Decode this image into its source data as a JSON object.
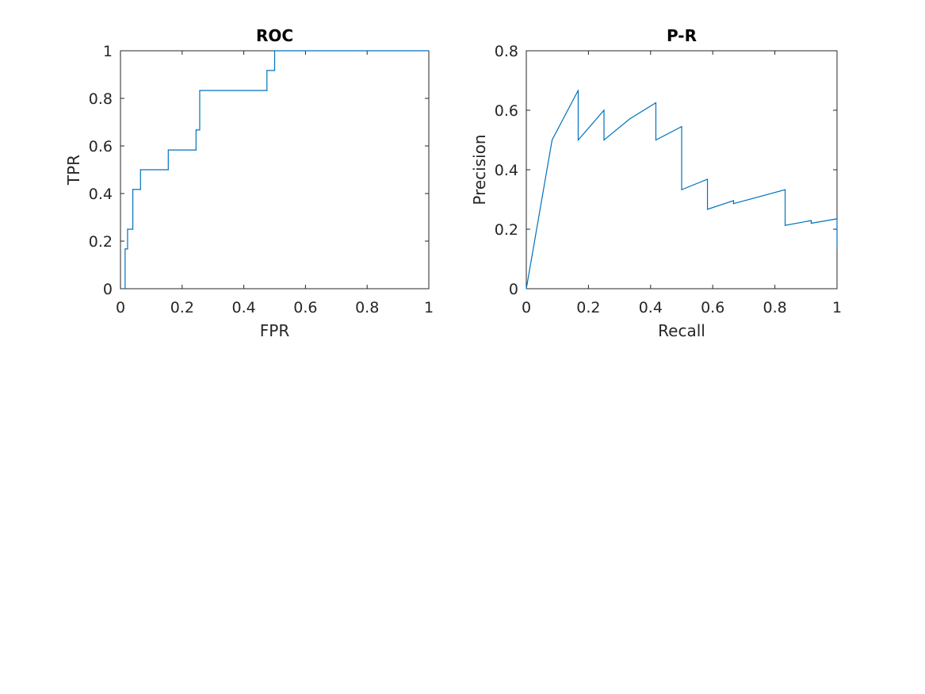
{
  "chart_data": [
    {
      "type": "line",
      "title": "ROC",
      "xlabel": "FPR",
      "ylabel": "TPR",
      "xlim": [
        0,
        1
      ],
      "ylim": [
        0,
        1
      ],
      "xticks": [
        0,
        0.2,
        0.4,
        0.6,
        0.8,
        1
      ],
      "yticks": [
        0,
        0.2,
        0.4,
        0.6,
        0.8,
        1
      ],
      "xticklabels": [
        "0",
        "0.2",
        "0.4",
        "0.6",
        "0.8",
        "1"
      ],
      "yticklabels": [
        "0",
        "0.2",
        "0.4",
        "0.6",
        "0.8",
        "1"
      ],
      "grid": false,
      "line_color": "#0072BD",
      "series": [
        {
          "x": [
            0.015,
            0.015,
            0.023,
            0.023,
            0.04,
            0.04,
            0.065,
            0.065,
            0.155,
            0.155,
            0.245,
            0.245,
            0.257,
            0.257,
            0.475,
            0.475,
            0.5,
            0.5,
            1.0
          ],
          "y": [
            0.0,
            0.167,
            0.167,
            0.25,
            0.25,
            0.417,
            0.417,
            0.5,
            0.5,
            0.583,
            0.583,
            0.667,
            0.667,
            0.833,
            0.833,
            0.917,
            0.917,
            1.0,
            1.0
          ]
        }
      ]
    },
    {
      "type": "line",
      "title": "P-R",
      "xlabel": "Recall",
      "ylabel": "Precision",
      "xlim": [
        0,
        1
      ],
      "ylim": [
        0,
        0.8
      ],
      "xticks": [
        0,
        0.2,
        0.4,
        0.6,
        0.8,
        1
      ],
      "yticks": [
        0,
        0.2,
        0.4,
        0.6,
        0.8
      ],
      "xticklabels": [
        "0",
        "0.2",
        "0.4",
        "0.6",
        "0.8",
        "1"
      ],
      "yticklabels": [
        "0",
        "0.2",
        "0.4",
        "0.6",
        "0.8"
      ],
      "grid": false,
      "line_color": "#0072BD",
      "series": [
        {
          "x": [
            0.0,
            0.083,
            0.167,
            0.167,
            0.25,
            0.25,
            0.333,
            0.417,
            0.417,
            0.5,
            0.5,
            0.583,
            0.583,
            0.667,
            0.667,
            0.833,
            0.833,
            0.917,
            0.917,
            1.0,
            1.0
          ],
          "y": [
            0.0,
            0.5,
            0.667,
            0.5,
            0.6,
            0.5,
            0.571,
            0.625,
            0.5,
            0.545,
            0.333,
            0.368,
            0.267,
            0.296,
            0.286,
            0.333,
            0.213,
            0.229,
            0.22,
            0.235,
            0.136
          ]
        }
      ]
    }
  ]
}
